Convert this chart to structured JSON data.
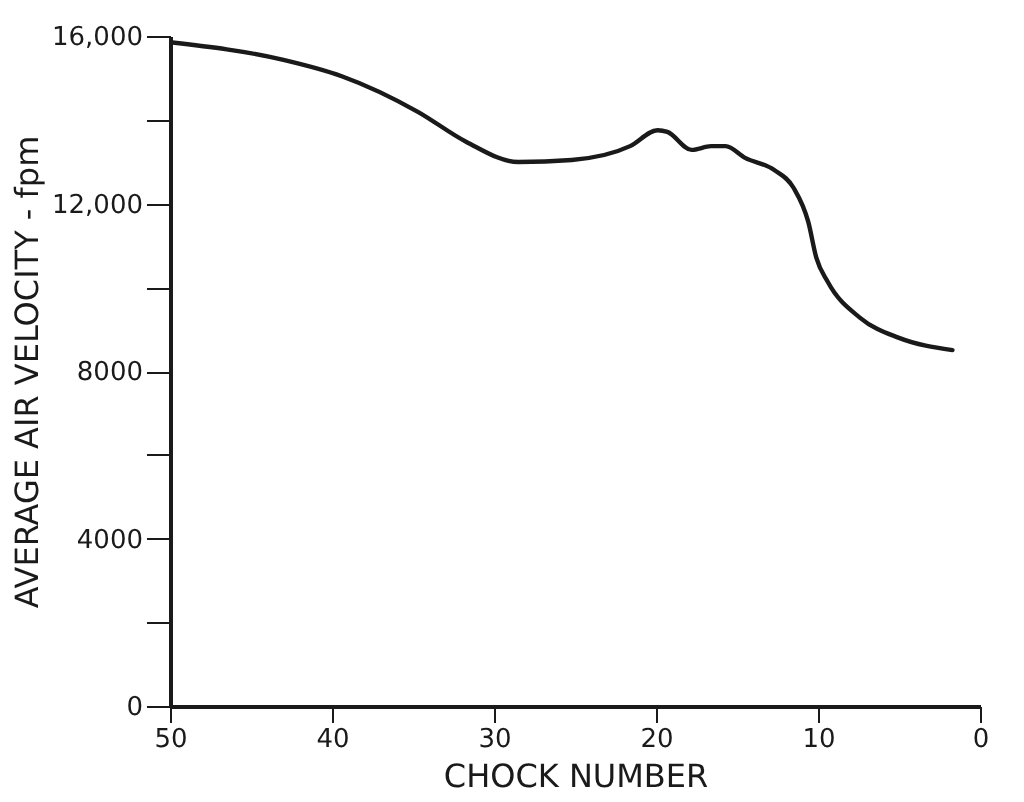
{
  "chart_data": {
    "type": "line",
    "xlabel": "CHOCK NUMBER",
    "ylabel": "AVERAGE AIR VELOCITY - fpm",
    "x": [
      50,
      43,
      39.4,
      34.7,
      31.7,
      28.5,
      25.2,
      21.6,
      19.9,
      19.3,
      17.8,
      16.6,
      15.7,
      14.5,
      12.7,
      11.5,
      10.6,
      10.1,
      9.4,
      7.4,
      5.0,
      1.7
    ],
    "series": [
      {
        "color": "#1a1a1a",
        "values": [
          15850,
          15430,
          15040,
          14190,
          13470,
          12990,
          13040,
          13370,
          13750,
          13710,
          13280,
          13370,
          13370,
          13090,
          12800,
          12370,
          11560,
          10700,
          10130,
          9270,
          8790,
          8500
        ]
      }
    ],
    "xlim": [
      50,
      0
    ],
    "xticks": [
      50,
      40,
      30,
      20,
      10,
      0
    ],
    "ylim": [
      0,
      16000
    ],
    "yticks": [
      0,
      {
        "value": 2000,
        "label": null
      },
      4000,
      {
        "value": 6000,
        "label": null
      },
      8000,
      {
        "value": 10000,
        "label": null
      },
      {
        "value": 12000,
        "label": "12,000"
      },
      {
        "value": 14000,
        "label": null
      },
      {
        "value": 16000,
        "label": "16,000"
      }
    ],
    "grid": false,
    "marker": "none",
    "line_style": "solid"
  }
}
